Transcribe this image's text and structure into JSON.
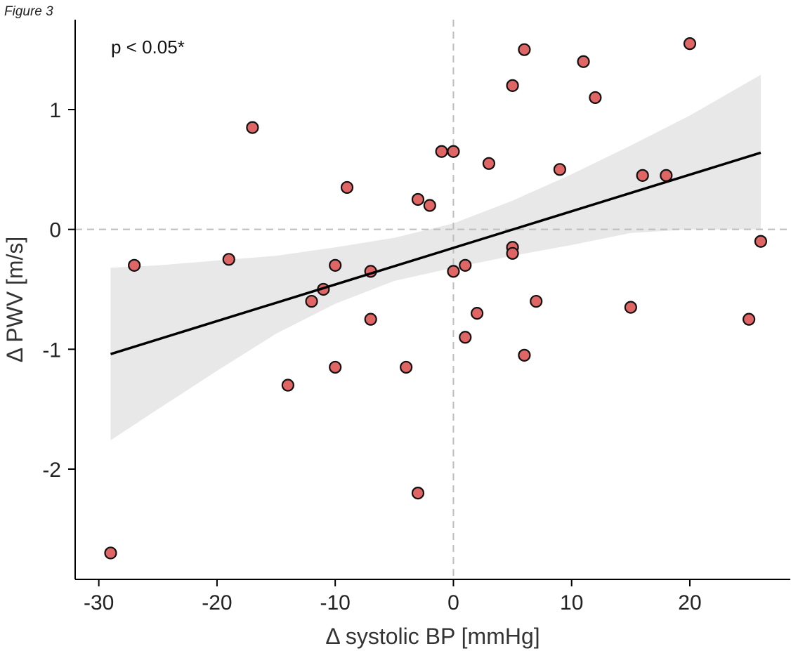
{
  "figure_label": "Figure 3",
  "chart_data": {
    "type": "scatter",
    "title": "",
    "xlabel": "Δ systolic BP [mmHg]",
    "ylabel": "Δ PWV [m/s]",
    "annotation": "p < 0.05*",
    "xlim": [
      -32,
      28.5
    ],
    "ylim": [
      -2.92,
      1.75
    ],
    "xticks": [
      -30,
      -20,
      -10,
      0,
      10,
      20
    ],
    "xtick_labels": [
      "-30",
      "-20",
      "-10",
      "0",
      "10",
      "20"
    ],
    "yticks": [
      -2,
      -1,
      0,
      1
    ],
    "ytick_labels": [
      "-2",
      "-1",
      "0",
      "1"
    ],
    "reference_lines": {
      "x": 0,
      "y": 0,
      "style": "dashed"
    },
    "grid": false,
    "legend": "none",
    "point_color": "#e06666",
    "point_edge_color": "#111111",
    "ci_band_color": "#e8e8e8",
    "regression": {
      "x": [
        -29,
        26
      ],
      "y": [
        -1.04,
        0.64
      ],
      "ci_x": [
        -29,
        -25,
        -20,
        -15,
        -10,
        -5,
        0,
        5,
        10,
        15,
        20,
        26
      ],
      "ci_upper": [
        -0.32,
        -0.3,
        -0.26,
        -0.22,
        -0.15,
        -0.07,
        0.05,
        0.24,
        0.46,
        0.7,
        0.95,
        1.29
      ],
      "ci_lower": [
        -1.76,
        -1.5,
        -1.18,
        -0.87,
        -0.62,
        -0.43,
        -0.32,
        -0.22,
        -0.13,
        -0.03,
        0.0,
        0.0
      ]
    },
    "points": [
      {
        "x": -29,
        "y": -2.7
      },
      {
        "x": -27,
        "y": -0.3
      },
      {
        "x": -19,
        "y": -0.25
      },
      {
        "x": -17,
        "y": 0.85
      },
      {
        "x": -14,
        "y": -1.3
      },
      {
        "x": -12,
        "y": -0.6
      },
      {
        "x": -11,
        "y": -0.5
      },
      {
        "x": -10,
        "y": -0.3
      },
      {
        "x": -10,
        "y": -1.15
      },
      {
        "x": -9,
        "y": 0.35
      },
      {
        "x": -7,
        "y": -0.35
      },
      {
        "x": -7,
        "y": -0.75
      },
      {
        "x": -4,
        "y": -1.15
      },
      {
        "x": -3,
        "y": 0.25
      },
      {
        "x": -3,
        "y": -2.2
      },
      {
        "x": -2,
        "y": 0.2
      },
      {
        "x": -1,
        "y": 0.65
      },
      {
        "x": 0,
        "y": 0.65
      },
      {
        "x": 0,
        "y": -0.35
      },
      {
        "x": 1,
        "y": -0.3
      },
      {
        "x": 1,
        "y": -0.9
      },
      {
        "x": 2,
        "y": -0.7
      },
      {
        "x": 3,
        "y": 0.55
      },
      {
        "x": 5,
        "y": 1.2
      },
      {
        "x": 5,
        "y": -0.15
      },
      {
        "x": 5,
        "y": -0.2
      },
      {
        "x": 6,
        "y": 1.5
      },
      {
        "x": 6,
        "y": -1.05
      },
      {
        "x": 7,
        "y": -0.6
      },
      {
        "x": 9,
        "y": 0.5
      },
      {
        "x": 11,
        "y": 1.4
      },
      {
        "x": 12,
        "y": 1.1
      },
      {
        "x": 15,
        "y": -0.65
      },
      {
        "x": 16,
        "y": 0.45
      },
      {
        "x": 18,
        "y": 0.45
      },
      {
        "x": 20,
        "y": 1.55
      },
      {
        "x": 25,
        "y": -0.75
      },
      {
        "x": 26,
        "y": -0.1
      }
    ]
  }
}
